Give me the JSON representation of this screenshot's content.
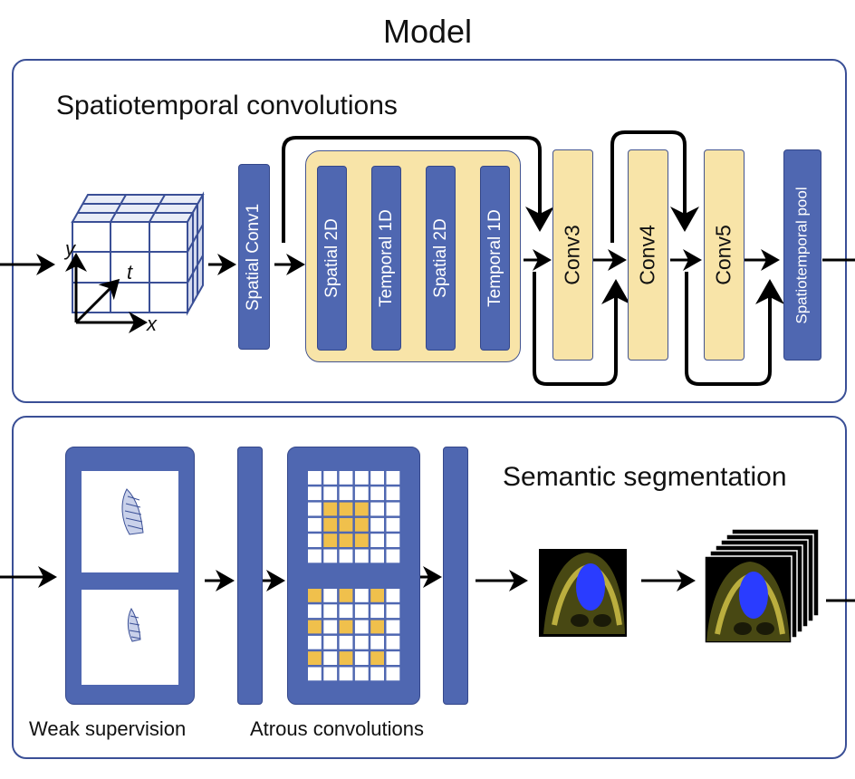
{
  "title": "Model",
  "top_panel": {
    "label": "Spatiotemporal convolutions",
    "cube_axes": {
      "x": "x",
      "y": "y",
      "t": "t"
    },
    "blocks": {
      "spatial_conv1": "Spatial Conv1",
      "inner": [
        "Spatial 2D",
        "Temporal 1D",
        "Spatial 2D",
        "Temporal 1D"
      ],
      "conv3": "Conv3",
      "conv4": "Conv4",
      "conv5": "Conv5",
      "pool": "Spatiotemporal pool"
    }
  },
  "bottom_panel": {
    "label": "Semantic segmentation",
    "caption_weak": "Weak supervision",
    "caption_atrous": "Atrous convolutions"
  },
  "colors": {
    "blue_block": "#4f67b1",
    "yellow_block": "#f8e4a8",
    "panel_border": "#3a4f96",
    "atrous_active": "#f0c04c",
    "seg_overlay": "#2a3cff",
    "echo_tissue": "#d8c84a"
  }
}
